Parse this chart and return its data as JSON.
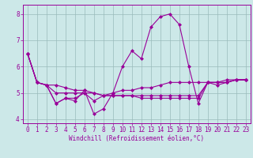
{
  "title": "",
  "xlabel": "Windchill (Refroidissement éolien,°C)",
  "ylabel": "",
  "bg_color": "#cce8e8",
  "line_color": "#990099",
  "grid_color": "#99bbbb",
  "xlim": [
    -0.5,
    23.5
  ],
  "ylim": [
    3.85,
    8.35
  ],
  "yticks": [
    4,
    5,
    6,
    7,
    8
  ],
  "xticks": [
    0,
    1,
    2,
    3,
    4,
    5,
    6,
    7,
    8,
    9,
    10,
    11,
    12,
    13,
    14,
    15,
    16,
    17,
    18,
    19,
    20,
    21,
    22,
    23
  ],
  "series": [
    [
      6.5,
      5.4,
      5.3,
      4.6,
      4.8,
      4.7,
      5.1,
      4.2,
      4.4,
      5.0,
      6.0,
      6.6,
      6.3,
      7.5,
      7.9,
      8.0,
      7.6,
      6.0,
      4.6,
      5.4,
      5.3,
      5.4,
      5.5,
      5.5
    ],
    [
      6.5,
      5.4,
      5.3,
      4.6,
      4.8,
      4.8,
      5.0,
      4.7,
      4.9,
      5.0,
      5.1,
      5.1,
      5.2,
      5.2,
      5.3,
      5.4,
      5.4,
      5.4,
      5.4,
      5.4,
      5.4,
      5.5,
      5.5,
      5.5
    ],
    [
      6.5,
      5.4,
      5.3,
      5.0,
      5.0,
      5.0,
      5.0,
      5.0,
      4.9,
      4.9,
      4.9,
      4.9,
      4.9,
      4.9,
      4.9,
      4.9,
      4.9,
      4.9,
      4.9,
      5.4,
      5.4,
      5.4,
      5.5,
      5.5
    ],
    [
      6.5,
      5.4,
      5.3,
      5.3,
      5.2,
      5.1,
      5.1,
      5.0,
      4.9,
      4.9,
      4.9,
      4.9,
      4.8,
      4.8,
      4.8,
      4.8,
      4.8,
      4.8,
      4.8,
      5.4,
      5.4,
      5.4,
      5.5,
      5.5
    ]
  ],
  "tick_fontsize": 5.5,
  "xlabel_fontsize": 5.5,
  "marker": "D",
  "markersize": 2.0,
  "linewidth": 0.8
}
